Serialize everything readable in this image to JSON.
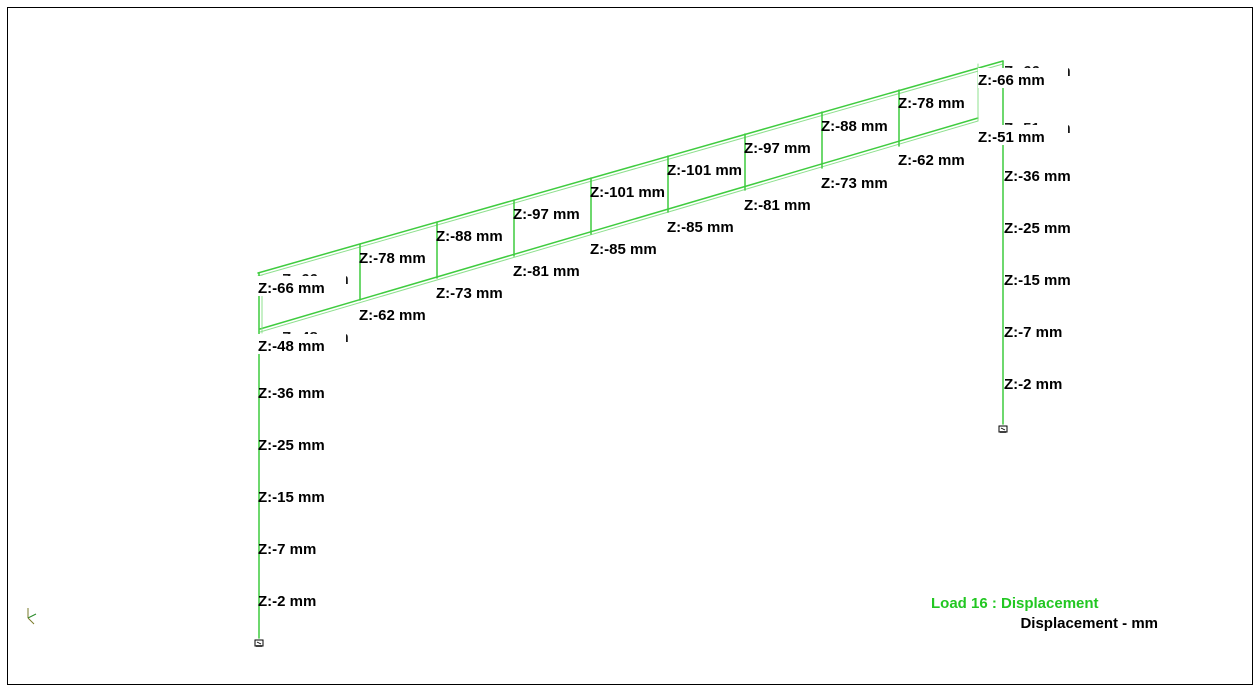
{
  "colors": {
    "member": "#3fcc3f",
    "member_light": "#8fe08f",
    "member_dark": "#2a8a2a",
    "legend_title": "#22c722",
    "text": "#000000"
  },
  "legend": {
    "title": "Load 16 : Displacement",
    "unit": "Displacement - mm"
  },
  "left_column_labels": [
    "Z:-48 mm",
    "Z:-36 mm",
    "Z:-25 mm",
    "Z:-15 mm",
    "Z:-7 mm",
    "Z:-2 mm"
  ],
  "right_column_labels": [
    "Z:-36 mm",
    "Z:-25 mm",
    "Z:-15 mm",
    "Z:-7 mm",
    "Z:-2 mm"
  ],
  "top_chord_labels": [
    "Z:-66 mm",
    "Z:-78 mm",
    "Z:-88 mm",
    "Z:-97 mm",
    "Z:-101 mm",
    "Z:-101 mm",
    "Z:-97 mm",
    "Z:-88 mm",
    "Z:-78 mm",
    "Z:-66 mm"
  ],
  "bottom_chord_labels": [
    "Z:-62 mm",
    "Z:-62 mm",
    "Z:-73 mm",
    "Z:-81 mm",
    "Z:-85 mm",
    "Z:-85 mm",
    "Z:-81 mm",
    "Z:-73 mm",
    "Z:-62 mm",
    "Z:-51 mm"
  ],
  "hidden_labels": [
    "Z:-66 mm",
    "Z:-51 mm",
    "Z:-66 mm",
    "Z:-48 mm"
  ],
  "icons": {
    "support": "pinned-support-icon",
    "axis": "axis-triad-icon"
  }
}
